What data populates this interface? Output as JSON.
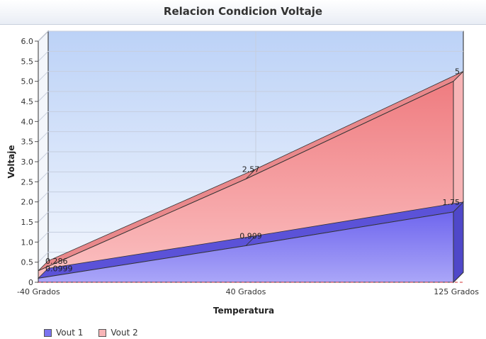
{
  "chart_data": {
    "type": "area",
    "title": "Relacion Condicion Voltaje",
    "xlabel": "Temperatura",
    "ylabel": "Voltaje",
    "categories": [
      "-40 Grados",
      "40 Grados",
      "125 Grados"
    ],
    "ylim": [
      0,
      6
    ],
    "yticks": [
      "0",
      "0.5",
      "1.0",
      "1.5",
      "2.0",
      "2.5",
      "3.0",
      "3.5",
      "4.0",
      "4.5",
      "5.0",
      "5.5",
      "6.0"
    ],
    "grid": true,
    "legend_position": "bottom-left",
    "series": [
      {
        "name": "Vout 1",
        "values": [
          0.0999,
          0.909,
          1.75
        ],
        "labels": [
          "0.0999",
          "0.909",
          "1.75"
        ],
        "color": "#7b73f0"
      },
      {
        "name": "Vout 2",
        "values": [
          0.286,
          2.57,
          5
        ],
        "labels": [
          "0.286",
          "2.57",
          "5"
        ],
        "color": "#f08a8e"
      }
    ]
  }
}
